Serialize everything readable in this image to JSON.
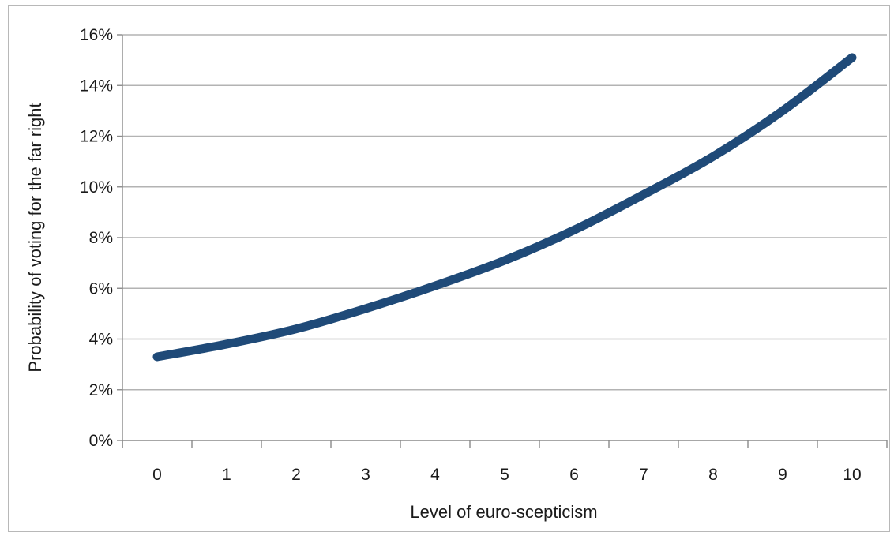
{
  "chart_data": {
    "type": "line",
    "title": "",
    "xlabel": "Level of euro-scepticism",
    "ylabel": "Probability of voting for the far right",
    "x": [
      0,
      1,
      2,
      3,
      4,
      5,
      6,
      7,
      8,
      9,
      10
    ],
    "x_tick_labels": [
      "0",
      "1",
      "2",
      "3",
      "4",
      "5",
      "6",
      "7",
      "8",
      "9",
      "10"
    ],
    "y_tick_labels": [
      "0%",
      "2%",
      "4%",
      "6%",
      "8%",
      "10%",
      "12%",
      "14%",
      "16%"
    ],
    "y_ticks": [
      0,
      2,
      4,
      6,
      8,
      10,
      12,
      14,
      16
    ],
    "ylim": [
      0,
      16
    ],
    "y_unit": "%",
    "grid": "horizontal",
    "legend": "none",
    "series": [
      {
        "values": [
          3.3,
          3.8,
          4.4,
          5.2,
          6.1,
          7.1,
          8.3,
          9.7,
          11.2,
          13.0,
          15.1
        ],
        "color": "#1f4a78"
      }
    ]
  }
}
